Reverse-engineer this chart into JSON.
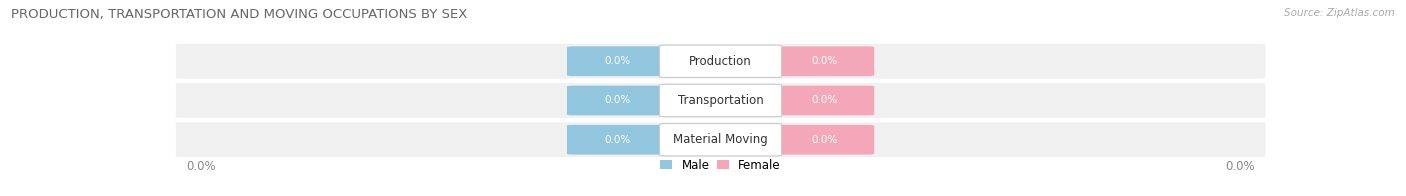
{
  "title": "PRODUCTION, TRANSPORTATION AND MOVING OCCUPATIONS BY SEX",
  "source": "Source: ZipAtlas.com",
  "categories": [
    "Production",
    "Transportation",
    "Material Moving"
  ],
  "male_values": [
    0.0,
    0.0,
    0.0
  ],
  "female_values": [
    0.0,
    0.0,
    0.0
  ],
  "male_color": "#92c5de",
  "female_color": "#f4a7b9",
  "row_bg_color": "#f0f0f0",
  "row_bg_color2": "#e8e8e8",
  "title_color": "#666666",
  "source_color": "#aaaaaa",
  "x_left_label": "0.0%",
  "x_right_label": "0.0%",
  "legend_male": "Male",
  "legend_female": "Female",
  "title_fontsize": 9.5,
  "source_fontsize": 7.5,
  "bar_label_fontsize": 7.5,
  "cat_label_fontsize": 8.5,
  "axis_label_fontsize": 8.5
}
